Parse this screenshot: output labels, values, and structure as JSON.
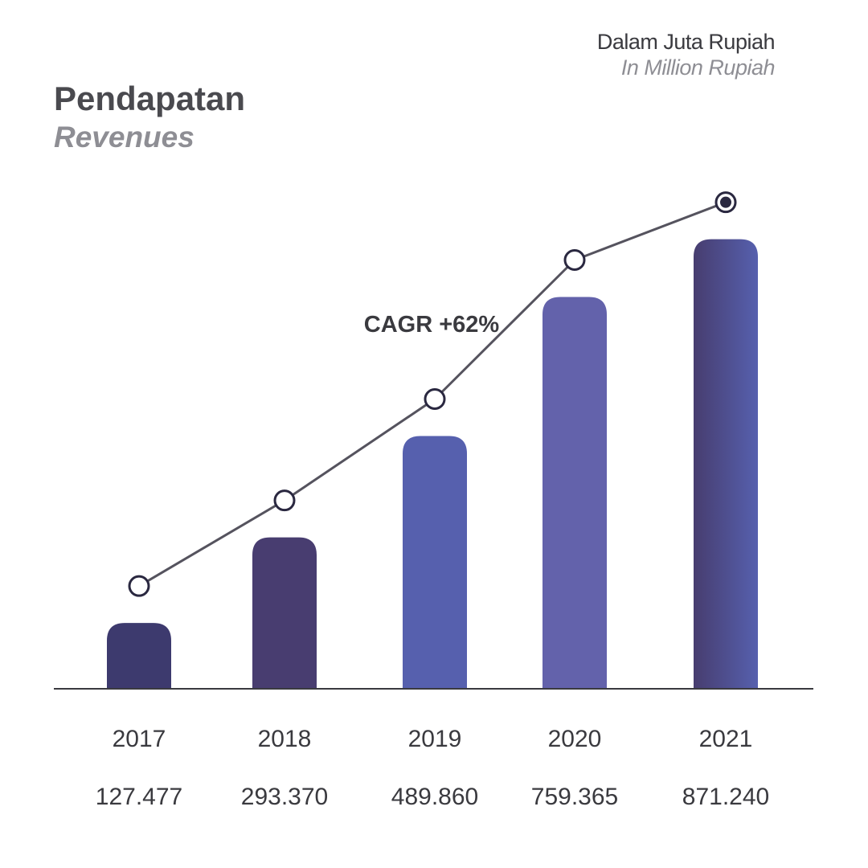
{
  "header": {
    "unit_primary": "Dalam Juta Rupiah",
    "unit_secondary": "In Million Rupiah"
  },
  "title": {
    "primary": "Pendapatan",
    "secondary": "Revenues"
  },
  "annotation": "CAGR +62%",
  "colors": {
    "bar_dark": "#3d3a6e",
    "bar_darker": "#483d70",
    "bar_mid": "#5660ae",
    "bar_light": "#6362ab",
    "bar_gradient_start": "#473d6f",
    "bar_gradient_end": "#5660ae",
    "line": "#55535e",
    "axis": "#3a3a3f",
    "text": "#3a3a3f"
  },
  "chart_data": {
    "type": "bar",
    "title": "Pendapatan",
    "subtitle": "Revenues",
    "unit": "Dalam Juta Rupiah / In Million Rupiah",
    "categories": [
      "2017",
      "2018",
      "2019",
      "2020",
      "2021"
    ],
    "values": [
      127477,
      293370,
      489860,
      759365,
      871240
    ],
    "value_labels": [
      "127.477",
      "293.370",
      "489.860",
      "759.365",
      "871.240"
    ],
    "overlay_line": {
      "type": "line",
      "values": [
        127477,
        293370,
        489860,
        759365,
        871240
      ],
      "highlight_last": true
    },
    "annotations": [
      "CAGR +62%"
    ],
    "ylim": [
      0,
      1000000
    ],
    "grid": false,
    "legend": "none"
  }
}
